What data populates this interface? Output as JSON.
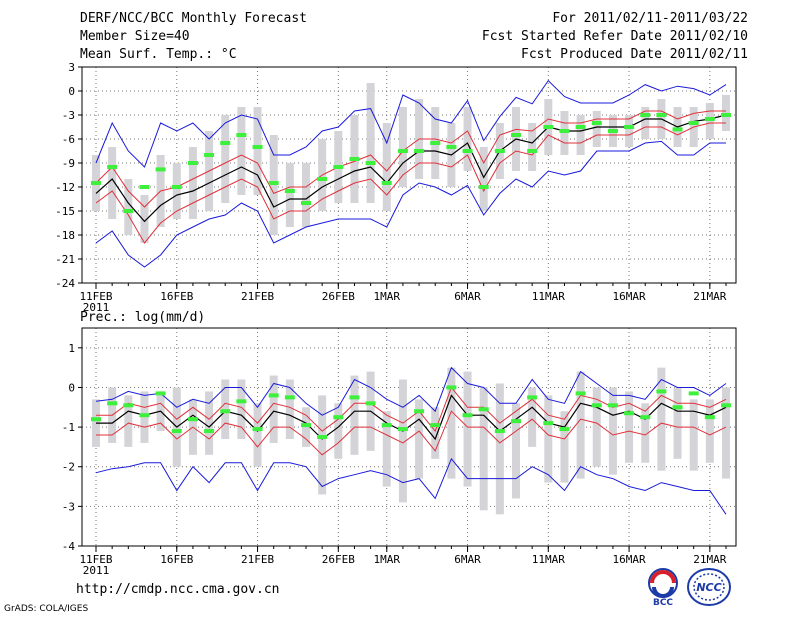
{
  "header": {
    "title": "DERF/NCC/BCC Monthly Forecast",
    "member_size": "Member Size=40",
    "variable": "Mean Surf. Temp.: °C",
    "period": "For 2011/02/11-2011/03/22",
    "fcst_started": "Fcst Started Refer Date 2011/02/10",
    "fcst_produced": "Fcst Produced Date 2011/02/11"
  },
  "footer": {
    "url": "http://cmdp.ncc.cma.gov.cn",
    "credit": "GrADS: COLA/IGES",
    "logo_bcc": "BCC",
    "logo_ncc": "NCC"
  },
  "colors": {
    "ensemble_mean": "#000000",
    "spread_inner": "#e0303a",
    "spread_outer": "#1a1adc",
    "member_box": "#d4d4d8",
    "member_marker": "#3cf03c",
    "grid": "#777777"
  },
  "chart_data": [
    {
      "id": "temperature",
      "type": "line",
      "title": "Mean Surf. Temp.: °C",
      "xlabel": "",
      "ylabel": "",
      "ylim": [
        -24,
        3
      ],
      "yticks": [
        3,
        0,
        -3,
        -6,
        -9,
        -12,
        -15,
        -18,
        -21,
        -24
      ],
      "x_day_range": [
        0,
        39
      ],
      "xticks": [
        {
          "day": 0,
          "label": "11FEB",
          "sublabel": "2011"
        },
        {
          "day": 5,
          "label": "16FEB"
        },
        {
          "day": 10,
          "label": "21FEB"
        },
        {
          "day": 15,
          "label": "26FEB"
        },
        {
          "day": 18,
          "label": "1MAR"
        },
        {
          "day": 23,
          "label": "6MAR"
        },
        {
          "day": 28,
          "label": "11MAR"
        },
        {
          "day": 33,
          "label": "16MAR"
        },
        {
          "day": 38,
          "label": "21MAR"
        }
      ],
      "series": [
        {
          "name": "ensemble_mean",
          "values": [
            -12.8,
            -11,
            -14,
            -16.3,
            -14.3,
            -13,
            -12.5,
            -11.5,
            -10.5,
            -9.5,
            -10.5,
            -14.5,
            -13.5,
            -13.5,
            -12,
            -11,
            -10,
            -9.5,
            -11.5,
            -9,
            -7.5,
            -7.5,
            -8,
            -6.5,
            -10.8,
            -7.5,
            -6,
            -6.5,
            -4.5,
            -5,
            -5,
            -4.5,
            -4.5,
            -4.5,
            -3.5,
            -3.5,
            -4.5,
            -3.8,
            -3.5,
            -3
          ]
        },
        {
          "name": "upper_inner",
          "values": [
            -11.5,
            -9.5,
            -12.5,
            -14.5,
            -12.5,
            -12,
            -11,
            -10,
            -9,
            -8,
            -9,
            -12.8,
            -12,
            -12,
            -10.5,
            -9.5,
            -8.8,
            -8,
            -10,
            -7.5,
            -6,
            -6,
            -6.5,
            -5,
            -9,
            -5.5,
            -4.8,
            -5,
            -3.5,
            -4,
            -4,
            -3.5,
            -3.5,
            -3.5,
            -2.5,
            -2.5,
            -3.5,
            -2.8,
            -2.5,
            -2.5
          ]
        },
        {
          "name": "lower_inner",
          "values": [
            -14,
            -12.5,
            -15.5,
            -19,
            -16.5,
            -15,
            -14,
            -13,
            -12,
            -11,
            -12,
            -16,
            -15,
            -15,
            -13.5,
            -12.5,
            -11.5,
            -11,
            -13,
            -10.5,
            -9,
            -9,
            -9.5,
            -8,
            -12.5,
            -9,
            -7.5,
            -8,
            -5.5,
            -6.5,
            -6.5,
            -5.5,
            -5.5,
            -5.5,
            -4.5,
            -4.5,
            -5.5,
            -4.5,
            -4,
            -4
          ]
        },
        {
          "name": "upper_outer",
          "values": [
            -9,
            -4,
            -7.5,
            -9.5,
            -4,
            -5,
            -4,
            -6,
            -4,
            -3,
            -3.5,
            -8,
            -8,
            -7,
            -5,
            -4.5,
            -2.5,
            -2.2,
            -6.5,
            -0.5,
            -1.5,
            -3.5,
            -4,
            -1.2,
            -6.2,
            -3.2,
            -0.8,
            -1.6,
            1.3,
            -0.7,
            -1.5,
            -1.5,
            -1.5,
            -0.5,
            0.8,
            0,
            0.6,
            0.3,
            -0.5,
            0.8
          ]
        },
        {
          "name": "lower_outer",
          "values": [
            -19,
            -17.5,
            -20.5,
            -22,
            -20.5,
            -18,
            -17,
            -16,
            -15.5,
            -14,
            -15,
            -19,
            -18,
            -17,
            -16.5,
            -16,
            -16,
            -16,
            -17,
            -13,
            -11.5,
            -12,
            -13,
            -11.8,
            -15.5,
            -12.8,
            -11,
            -12,
            -10,
            -10.5,
            -10,
            -7.5,
            -7.5,
            -7.5,
            -6.5,
            -6.3,
            -8,
            -8,
            -6.5,
            -6.5
          ]
        },
        {
          "name": "member_box_top",
          "values": [
            -8,
            -7,
            -11,
            -13,
            -8,
            -9,
            -7,
            -5,
            -3,
            -2,
            -2,
            -5.5,
            -9,
            -9,
            -6,
            -5,
            -3,
            1,
            -4,
            -2,
            -1,
            -2,
            -4,
            -2,
            -7,
            -4,
            -2,
            -4,
            -1,
            -2.5,
            -3,
            -2.5,
            -3,
            -3,
            -2,
            -1,
            -2,
            -2,
            -1.5,
            -0.5
          ]
        },
        {
          "name": "member_box_bottom",
          "values": [
            -15,
            -16,
            -18,
            -19,
            -17,
            -16,
            -16,
            -15,
            -14,
            -13,
            -13,
            -18,
            -17,
            -17,
            -15,
            -14,
            -14,
            -14,
            -15,
            -12,
            -11,
            -11,
            -12,
            -10,
            -15,
            -11,
            -10,
            -10,
            -8,
            -8,
            -8,
            -7,
            -7,
            -7,
            -6,
            -6,
            -7,
            -7,
            -6,
            -5
          ]
        },
        {
          "name": "member_marker",
          "values": [
            -11.5,
            -9.5,
            -15,
            -12,
            -9.8,
            -12,
            -9,
            -8,
            -6.5,
            -5.5,
            -7,
            -11.5,
            -12.5,
            -14,
            -11,
            -9.5,
            -8.5,
            -9,
            -11.5,
            -7.5,
            -7.5,
            -6.5,
            -7,
            -7.5,
            -12,
            -7.5,
            -5.5,
            -7.5,
            -4.5,
            -5,
            -4.5,
            -4,
            -5,
            -4.5,
            -3,
            -3,
            -4.8,
            -4,
            -3.5,
            -3
          ]
        }
      ]
    },
    {
      "id": "precipitation",
      "type": "line",
      "title": "Prec.: log(mm/d)",
      "xlabel": "",
      "ylabel": "",
      "ylim": [
        -4,
        1.5
      ],
      "yticks": [
        1,
        0,
        -1,
        -2,
        -3,
        -4
      ],
      "x_day_range": [
        0,
        39
      ],
      "xticks": [
        {
          "day": 0,
          "label": "11FEB",
          "sublabel": "2011"
        },
        {
          "day": 5,
          "label": "16FEB"
        },
        {
          "day": 10,
          "label": "21FEB"
        },
        {
          "day": 15,
          "label": "26FEB"
        },
        {
          "day": 18,
          "label": "1MAR"
        },
        {
          "day": 23,
          "label": "6MAR"
        },
        {
          "day": 28,
          "label": "11MAR"
        },
        {
          "day": 33,
          "label": "16MAR"
        },
        {
          "day": 38,
          "label": "21MAR"
        }
      ],
      "series": [
        {
          "name": "ensemble_mean",
          "values": [
            -0.9,
            -0.9,
            -0.6,
            -0.7,
            -0.6,
            -1,
            -0.7,
            -1,
            -0.6,
            -0.7,
            -1.1,
            -0.6,
            -0.7,
            -0.9,
            -1.3,
            -1,
            -0.6,
            -0.6,
            -0.9,
            -1.1,
            -0.8,
            -1.3,
            -0.2,
            -0.7,
            -0.7,
            -1.1,
            -0.8,
            -0.5,
            -0.9,
            -1,
            -0.4,
            -0.5,
            -0.7,
            -0.6,
            -0.8,
            -0.4,
            -0.6,
            -0.6,
            -0.7,
            -0.5
          ]
        },
        {
          "name": "upper_inner",
          "values": [
            -0.7,
            -0.7,
            -0.4,
            -0.5,
            -0.4,
            -0.8,
            -0.5,
            -0.8,
            -0.4,
            -0.5,
            -0.9,
            -0.4,
            -0.5,
            -0.7,
            -1.1,
            -0.8,
            -0.4,
            -0.4,
            -0.7,
            -0.9,
            -0.6,
            -1.1,
            0,
            -0.5,
            -0.5,
            -0.9,
            -0.6,
            -0.3,
            -0.7,
            -0.8,
            -0.2,
            -0.3,
            -0.5,
            -0.4,
            -0.6,
            -0.2,
            -0.4,
            -0.4,
            -0.5,
            -0.3
          ]
        },
        {
          "name": "lower_inner",
          "values": [
            -1.2,
            -1.2,
            -0.9,
            -1,
            -0.9,
            -1.3,
            -1,
            -1.3,
            -0.9,
            -1,
            -1.5,
            -1,
            -1,
            -1.3,
            -1.7,
            -1.4,
            -1,
            -1,
            -1.2,
            -1.4,
            -1.1,
            -1.6,
            -0.6,
            -1,
            -1,
            -1.4,
            -1.1,
            -0.8,
            -1.2,
            -1.3,
            -0.8,
            -0.9,
            -1.2,
            -1.1,
            -1.2,
            -0.9,
            -1,
            -1,
            -1.2,
            -1
          ]
        },
        {
          "name": "upper_outer",
          "values": [
            -0.35,
            -0.3,
            -0.1,
            -0.2,
            -0.15,
            -0.5,
            -0.3,
            -0.4,
            0,
            0,
            -0.5,
            0.1,
            0,
            -0.4,
            -0.7,
            -0.5,
            0.2,
            0,
            -0.3,
            -0.5,
            -0.2,
            -0.6,
            0.5,
            0.1,
            0,
            -0.4,
            -0.4,
            0.2,
            -0.3,
            -0.4,
            0.4,
            0.1,
            -0.2,
            -0.2,
            -0.3,
            0.2,
            0,
            0,
            -0.2,
            0.1
          ]
        },
        {
          "name": "lower_outer",
          "values": [
            -2.15,
            -2.05,
            -2,
            -1.9,
            -1.9,
            -2.6,
            -2,
            -2.4,
            -1.9,
            -1.9,
            -2.6,
            -1.9,
            -1.9,
            -2,
            -2.5,
            -2.3,
            -2.2,
            -2.1,
            -2.2,
            -2.4,
            -2.3,
            -2.8,
            -1.8,
            -2.3,
            -2.3,
            -2.3,
            -2.3,
            -2,
            -2.2,
            -2.6,
            -2,
            -2.2,
            -2.3,
            -2.5,
            -2.6,
            -2.4,
            -2.5,
            -2.6,
            -2.6,
            -3.2
          ]
        },
        {
          "name": "member_box_top",
          "values": [
            -0.3,
            0,
            -0.2,
            -0.1,
            -0.2,
            0,
            -0.3,
            -0.1,
            0.2,
            0.2,
            -0.4,
            0.3,
            0.2,
            -0.5,
            -0.2,
            -0.4,
            0.3,
            0.4,
            -0.6,
            0.2,
            -0.3,
            -0.5,
            0.5,
            0.4,
            0,
            0.1,
            -0.4,
            0,
            -0.2,
            -0.6,
            0.4,
            0,
            0,
            -0.1,
            -0.4,
            0.5,
            0,
            -0.3,
            -0.3,
            0
          ]
        },
        {
          "name": "member_box_bottom",
          "values": [
            -1.5,
            -1.4,
            -1.5,
            -1.4,
            -1.1,
            -2,
            -1.7,
            -1.7,
            -1.3,
            -1.3,
            -2,
            -1.4,
            -1.3,
            -1.5,
            -2.7,
            -1.8,
            -1.7,
            -1.6,
            -2.5,
            -2.9,
            -2.3,
            -1.8,
            -2.3,
            -2.5,
            -3.1,
            -3.2,
            -2.8,
            -1.5,
            -2.4,
            -2.4,
            -2.3,
            -2,
            -2.2,
            -1.9,
            -1.9,
            -2.1,
            -1.8,
            -2.1,
            -1.9,
            -2.3
          ]
        },
        {
          "name": "member_marker",
          "values": [
            -0.8,
            -0.4,
            -0.45,
            -0.7,
            -0.15,
            -1.1,
            -0.8,
            -1.1,
            -0.6,
            -0.35,
            -1.05,
            -0.2,
            -0.25,
            -0.95,
            -1.25,
            -0.75,
            -0.25,
            -0.4,
            -0.95,
            -1.05,
            -0.6,
            -0.95,
            0,
            -0.7,
            -0.55,
            -1.1,
            -0.85,
            -0.25,
            -0.9,
            -1.05,
            -0.15,
            -0.45,
            -0.45,
            -0.65,
            -0.75,
            -0.1,
            -0.5,
            -0.15,
            -0.75,
            -0.45
          ]
        }
      ]
    }
  ]
}
